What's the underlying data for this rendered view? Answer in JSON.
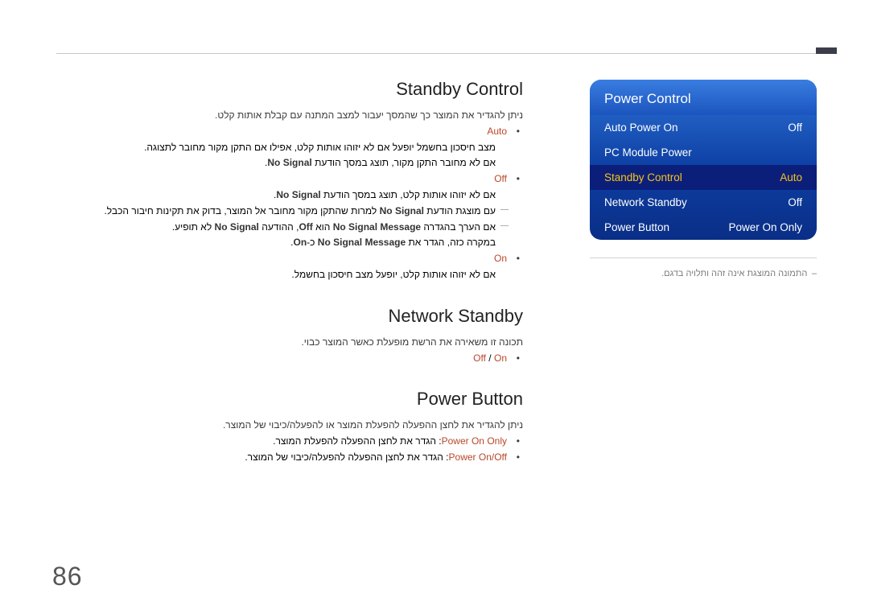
{
  "page_number": "86",
  "menu": {
    "title": "Power Control",
    "rows": [
      {
        "label": "Auto Power On",
        "value": "Off",
        "selected": false
      },
      {
        "label": "PC Module Power",
        "value": "",
        "selected": false
      },
      {
        "label": "Standby Control",
        "value": "Auto",
        "selected": true
      },
      {
        "label": "Network Standby",
        "value": "Off",
        "selected": false
      },
      {
        "label": "Power Button",
        "value": "Power On Only",
        "selected": false
      }
    ],
    "caption": "– התמונה המוצגת אינה זהה ותלויה בדגם.",
    "colors": {
      "gradient_top": "#3a7de0",
      "gradient_mid": "#1b55bf",
      "gradient_bottom": "#0a2e86",
      "selected_bg": "#0b1f7a",
      "selected_fg": "#f5c518"
    }
  },
  "sections": {
    "standby": {
      "title": "Standby Control",
      "intro": "ניתן להגדיר את המוצר כך שהמסך יעבור למצב המתנה עם קבלת אותות קלט.",
      "auto_kw": "Auto",
      "auto_body": "מצב חיסכון בחשמל יופעל אם לא יזוהו אותות קלט, אפילו אם התקן מקור מחובר לתצוגה.",
      "auto_sub_prefix": "אם לא מחובר התקן מקור, תוצג במסך הודעת ",
      "auto_sub_kw": "No Signal",
      "auto_sub_suffix": ".",
      "off_kw": "Off",
      "off_body_prefix": "אם לא יזוהו אותות קלט, תוצג במסך הודעת ",
      "off_body_kw": "No Signal",
      "off_body_suffix": ".",
      "off_sub1_prefix": "עם מוצגת הודעת ",
      "off_sub1_kw": "No Signal",
      "off_sub1_suffix": " למרות שהתקן מקור מחובר אל המוצר, בדוק את תקינות חיבור הכבל.",
      "off_sub2_prefix": "אם הערך בהגדרה ",
      "off_sub2_kw1": "No Signal Message",
      "off_sub2_mid": " הוא ",
      "off_sub2_kw2": "Off",
      "off_sub2_mid2": ", ההודעה ",
      "off_sub2_kw3": "No Signal",
      "off_sub2_suffix": " לא תופיע.",
      "off_sub3_prefix": "במקרה כזה, הגדר את ",
      "off_sub3_kw1": "No Signal Message",
      "off_sub3_mid": " כ-",
      "off_sub3_kw2": "On",
      "off_sub3_suffix": ".",
      "on_kw": "On",
      "on_body": "אם לא יזוהו אותות קלט, יופעל מצב חיסכון בחשמל."
    },
    "network": {
      "title": "Network Standby",
      "intro": "תכונה זו משאירה את הרשת מופעלת כאשר המוצר כבוי.",
      "opt_off": "Off",
      "opt_sep": " / ",
      "opt_on": "On"
    },
    "power_button": {
      "title": "Power Button",
      "intro": "ניתן להגדיר את לחצן ההפעלה להפעלת המוצר או להפעלה/כיבוי של המוצר.",
      "row1_kw": "Power On Only",
      "row1_txt": ": הגדר את לחצן ההפעלה להפעלת המוצר.",
      "row2_kw": "Power On/Off",
      "row2_txt": ": הגדר את לחצן ההפעלה להפעלה/כיבוי של המוצר."
    }
  },
  "colors": {
    "highlight": "#b8462a",
    "text": "#3a3a3a",
    "title": "#222222",
    "rule": "#c8c8c8",
    "accent_bar": "#3b3e4a"
  }
}
